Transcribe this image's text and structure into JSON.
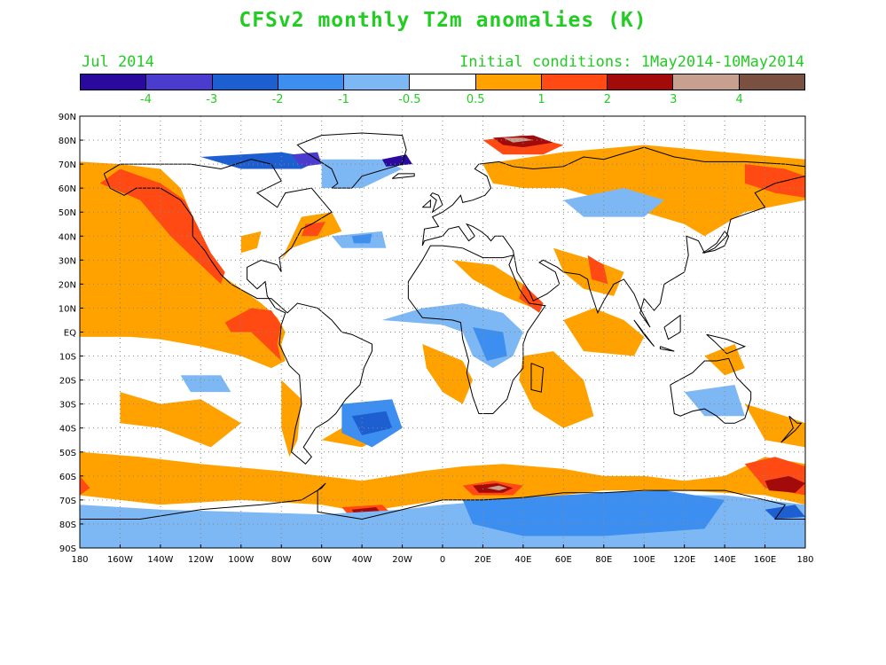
{
  "title": "CFSv2 monthly T2m anomalies (K)",
  "valid_month": "Jul 2014",
  "initial_conditions": "Initial conditions: 1May2014-10May2014",
  "colorbar": {
    "colors": [
      "#2a0a9e",
      "#4b3ccf",
      "#1d5fd0",
      "#3c8ef0",
      "#7db8f5",
      "#ffffff",
      "#ffa200",
      "#ff4a14",
      "#a30a0a",
      "#c8a090",
      "#7a5040"
    ],
    "labels": [
      "-4",
      "-3",
      "-2",
      "-1",
      "-0.5",
      "0.5",
      "1",
      "2",
      "3",
      "4"
    ]
  },
  "lat_labels": [
    "90N",
    "80N",
    "70N",
    "60N",
    "50N",
    "40N",
    "30N",
    "20N",
    "10N",
    "EQ",
    "10S",
    "20S",
    "30S",
    "40S",
    "50S",
    "60S",
    "70S",
    "80S",
    "90S"
  ],
  "lon_labels": [
    "180",
    "160W",
    "140W",
    "120W",
    "100W",
    "80W",
    "60W",
    "40W",
    "20W",
    "0",
    "20E",
    "40E",
    "60E",
    "80E",
    "100E",
    "120E",
    "140E",
    "160E",
    "180"
  ]
}
